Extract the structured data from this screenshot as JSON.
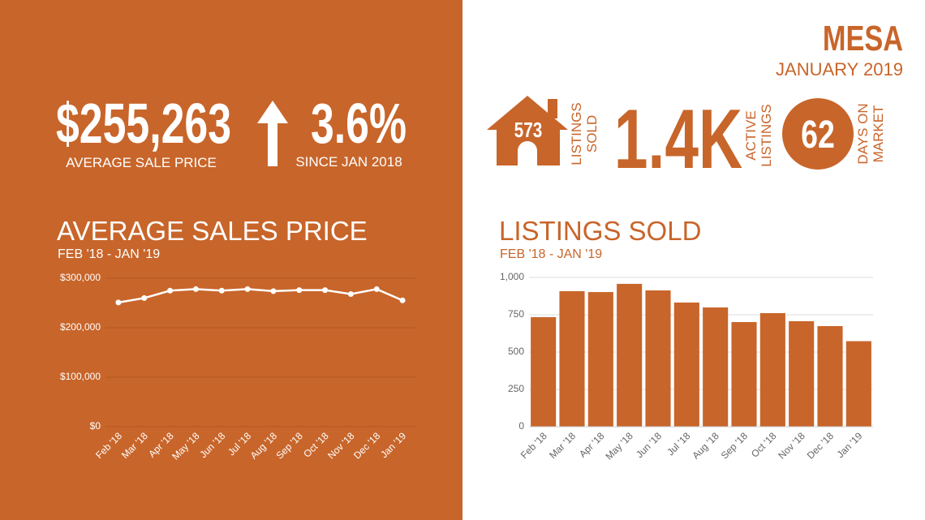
{
  "header": {
    "city": "MESA",
    "date": "JANUARY 2019"
  },
  "stats": {
    "average_sale_price": {
      "value": "$255,263",
      "label": "AVERAGE SALE PRICE"
    },
    "change": {
      "value": "3.6%",
      "label": "SINCE JAN 2018"
    },
    "listings_sold": {
      "value": "573",
      "label": [
        "LISTINGS",
        "SOLD"
      ]
    },
    "active_listings": {
      "value": "1.4K",
      "label": [
        "ACTIVE",
        "LISTINGS"
      ]
    },
    "days_on_market": {
      "value": "62",
      "label": [
        "DAYS ON",
        "MARKET"
      ]
    }
  },
  "chart_data": [
    {
      "type": "line",
      "title": "AVERAGE SALES PRICE",
      "subtitle": "FEB '18 - JAN '19",
      "categories": [
        "Feb '18",
        "Mar '18",
        "Apr '18",
        "May '18",
        "Jun '18",
        "Jul '18",
        "Aug '18",
        "Sep '18",
        "Oct '18",
        "Nov '18",
        "Dec '18",
        "Jan '19"
      ],
      "values": [
        251000,
        260000,
        275000,
        278000,
        275000,
        278000,
        274000,
        276000,
        276000,
        268000,
        278000,
        255263
      ],
      "color": "#ffffff",
      "ylim": [
        0,
        300000
      ],
      "yticks": [
        {
          "value": 0,
          "label": "$0"
        },
        {
          "value": 100000,
          "label": "$100,000"
        },
        {
          "value": 200000,
          "label": "$200,000"
        },
        {
          "value": 300000,
          "label": "$300,000"
        }
      ],
      "grid": true
    },
    {
      "type": "bar",
      "title": "LISTINGS SOLD",
      "subtitle": "FEB '18 - JAN '19",
      "categories": [
        "Feb '18",
        "Mar '18",
        "Apr '18",
        "May '18",
        "Jun '18",
        "Jul '18",
        "Aug '18",
        "Sep '18",
        "Oct '18",
        "Nov '18",
        "Dec '18",
        "Jan '19"
      ],
      "values": [
        734,
        908,
        902,
        957,
        913,
        832,
        799,
        701,
        761,
        707,
        674,
        573
      ],
      "color": "#c8652a",
      "ylim": [
        0,
        1000
      ],
      "yticks": [
        0,
        250,
        500,
        750,
        {
          "value": 1000,
          "label": "1,000"
        }
      ],
      "grid": true
    }
  ]
}
